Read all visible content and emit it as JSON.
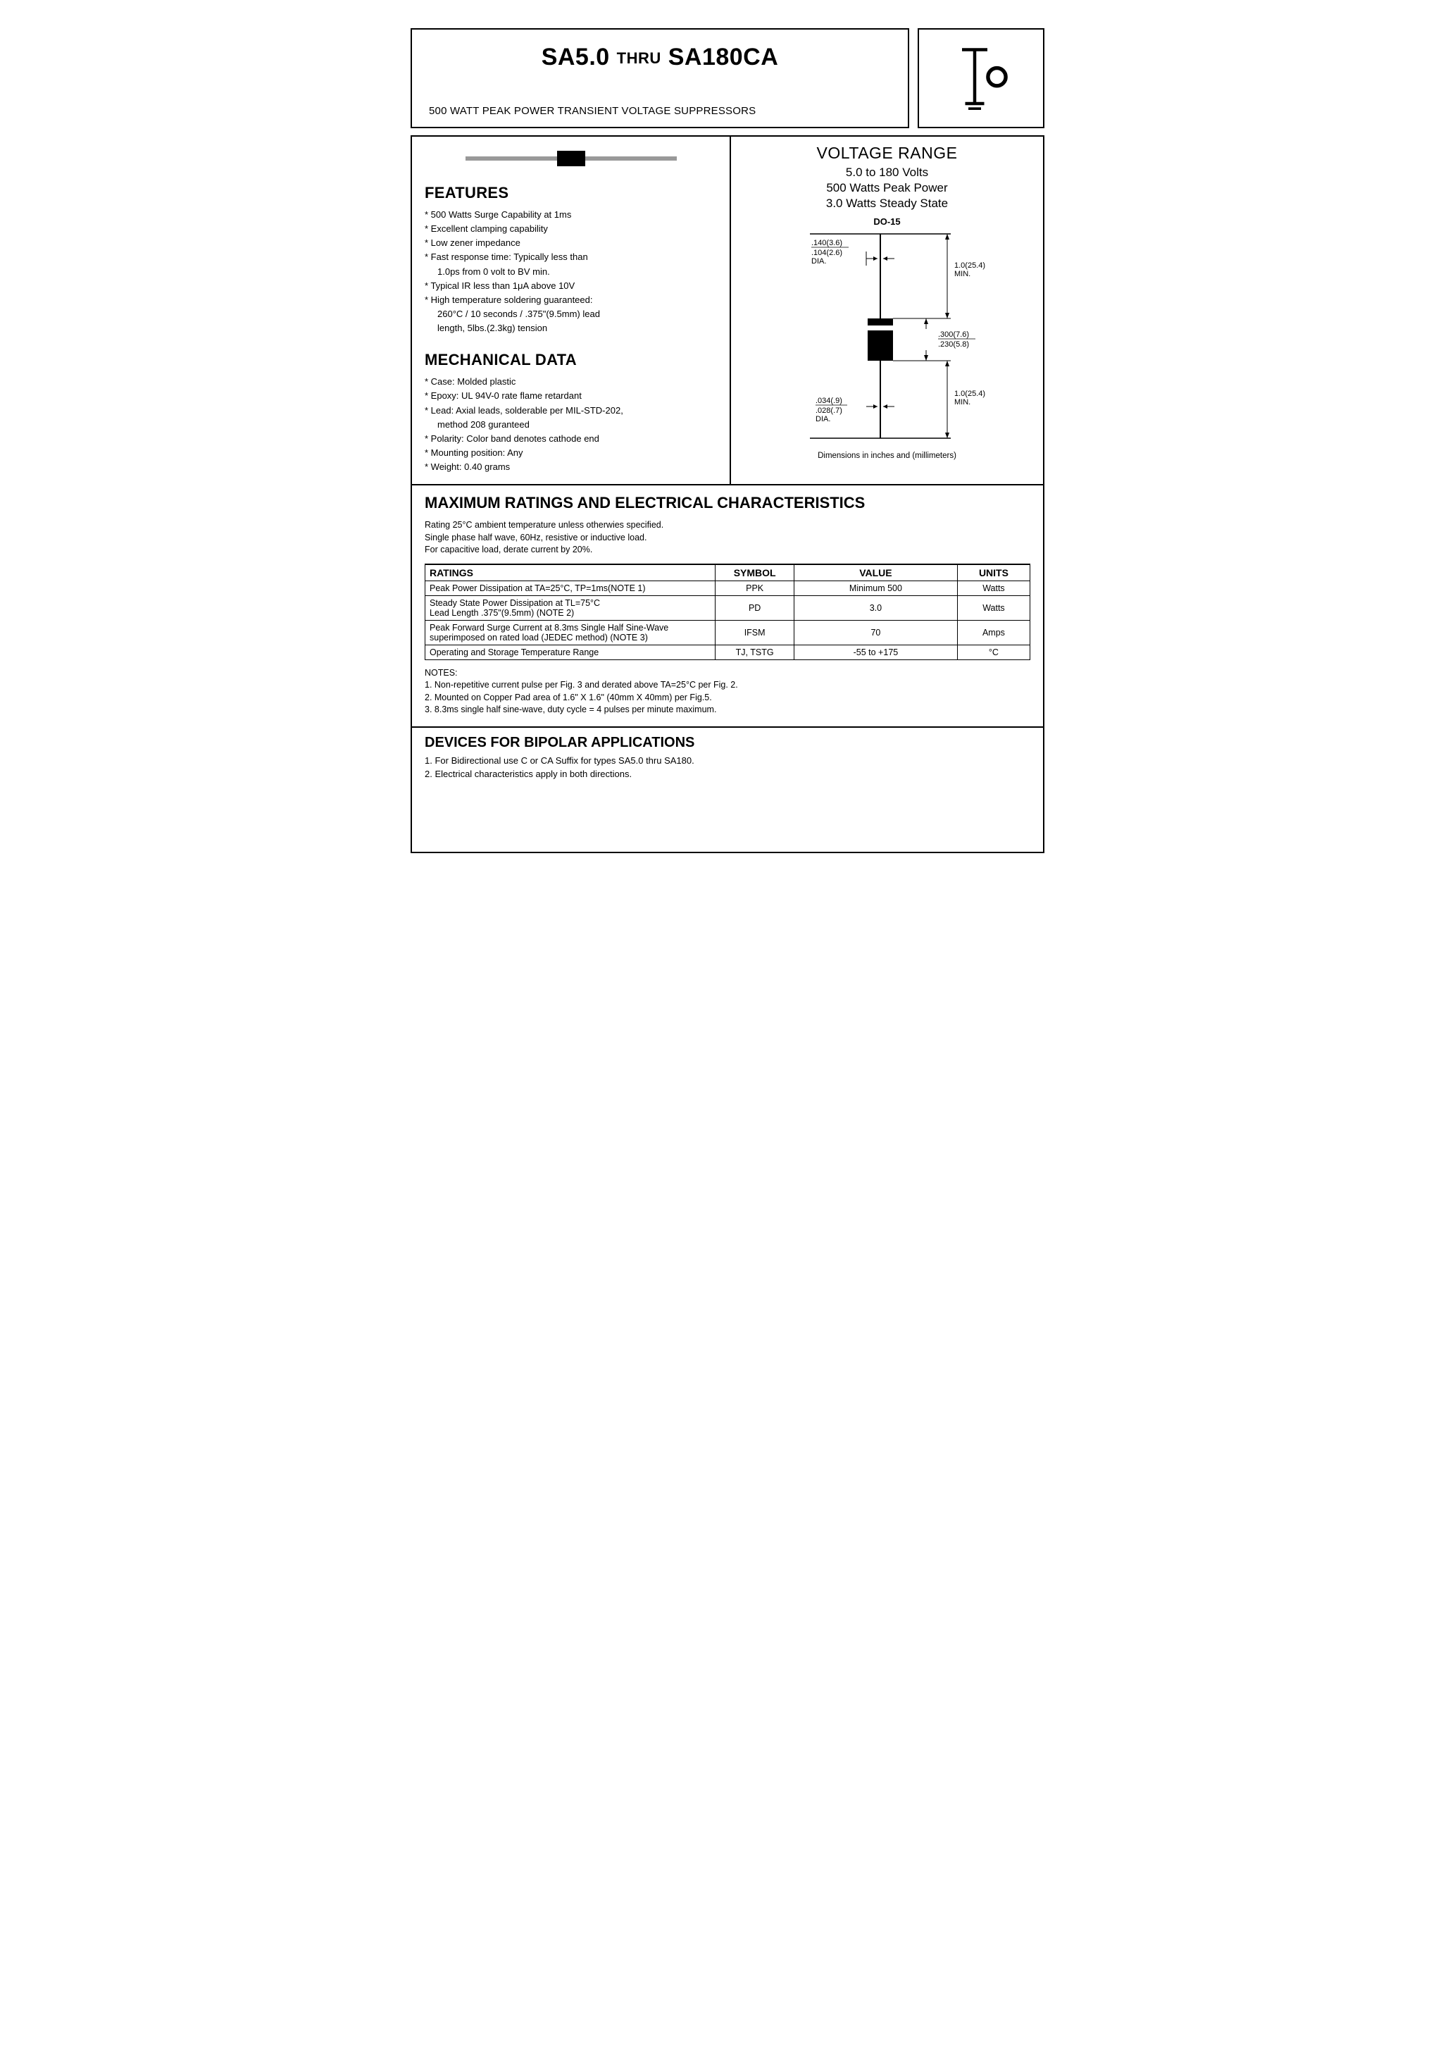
{
  "header": {
    "title_left": "SA5.0",
    "title_mid": "THRU",
    "title_right": "SA180CA",
    "subtitle": "500 WATT PEAK POWER TRANSIENT VOLTAGE SUPPRESSORS"
  },
  "features": {
    "heading": "FEATURES",
    "items": [
      "500 Watts Surge Capability at 1ms",
      "Excellent clamping capability",
      "Low zener impedance",
      "Fast response time: Typically less than",
      "1.0ps from 0 volt to BV min.",
      "Typical IR less than 1μA above 10V",
      "High temperature soldering guaranteed:",
      "260°C / 10 seconds / .375\"(9.5mm) lead",
      "length, 5lbs.(2.3kg) tension"
    ],
    "indent_indices": [
      4,
      7,
      8
    ]
  },
  "mechanical": {
    "heading": "MECHANICAL DATA",
    "items": [
      "Case: Molded plastic",
      "Epoxy: UL 94V-0 rate flame retardant",
      "Lead: Axial leads, solderable per MIL-STD-202,",
      "method 208 guranteed",
      "Polarity: Color band denotes cathode end",
      "Mounting position: Any",
      "Weight: 0.40 grams"
    ],
    "indent_indices": [
      3
    ]
  },
  "voltage_range": {
    "heading": "VOLTAGE RANGE",
    "lines": [
      "5.0 to 180 Volts",
      "500 Watts Peak Power",
      "3.0 Watts Steady State"
    ]
  },
  "package": {
    "name": "DO-15",
    "dim_lead_dia": ".140(3.6) / .104(2.6) DIA.",
    "dim_lead_len_top": "1.0(25.4) MIN.",
    "dim_body": ".300(7.6) / .230(5.8)",
    "dim_wire_dia": ".034(.9) / .028(.7) DIA.",
    "dim_lead_len_bot": "1.0(25.4) MIN.",
    "caption": "Dimensions in inches and (millimeters)"
  },
  "ratings": {
    "heading": "MAXIMUM RATINGS AND ELECTRICAL CHARACTERISTICS",
    "conditions": [
      "Rating 25°C ambient temperature unless otherwies specified.",
      "Single phase half wave, 60Hz, resistive or inductive load.",
      "For capacitive load, derate current by 20%."
    ],
    "cols": [
      "RATINGS",
      "SYMBOL",
      "VALUE",
      "UNITS"
    ],
    "rows": [
      {
        "rating": "Peak Power Dissipation at TA=25°C, TP=1ms(NOTE 1)",
        "symbol": "PPK",
        "value": "Minimum 500",
        "units": "Watts"
      },
      {
        "rating": "Steady State Power Dissipation at TL=75°C\nLead Length .375\"(9.5mm) (NOTE 2)",
        "symbol": "PD",
        "value": "3.0",
        "units": "Watts"
      },
      {
        "rating": "Peak Forward Surge Current at 8.3ms Single Half Sine-Wave\nsuperimposed on rated load (JEDEC method) (NOTE 3)",
        "symbol": "IFSM",
        "value": "70",
        "units": "Amps"
      },
      {
        "rating": "Operating and Storage Temperature Range",
        "symbol": "TJ, TSTG",
        "value": "-55 to +175",
        "units": "°C"
      }
    ],
    "notes_heading": "NOTES:",
    "notes": [
      "1. Non-repetitive current pulse per Fig. 3 and derated above TA=25°C per Fig. 2.",
      "2. Mounted on Copper Pad area of 1.6\" X 1.6\" (40mm X 40mm) per Fig.5.",
      "3. 8.3ms single half sine-wave, duty cycle = 4 pulses per minute maximum."
    ]
  },
  "bipolar": {
    "heading": "DEVICES FOR BIPOLAR APPLICATIONS",
    "lines": [
      "1. For Bidirectional use C or CA Suffix for types SA5.0 thru SA180.",
      "2. Electrical characteristics apply in both directions."
    ]
  }
}
